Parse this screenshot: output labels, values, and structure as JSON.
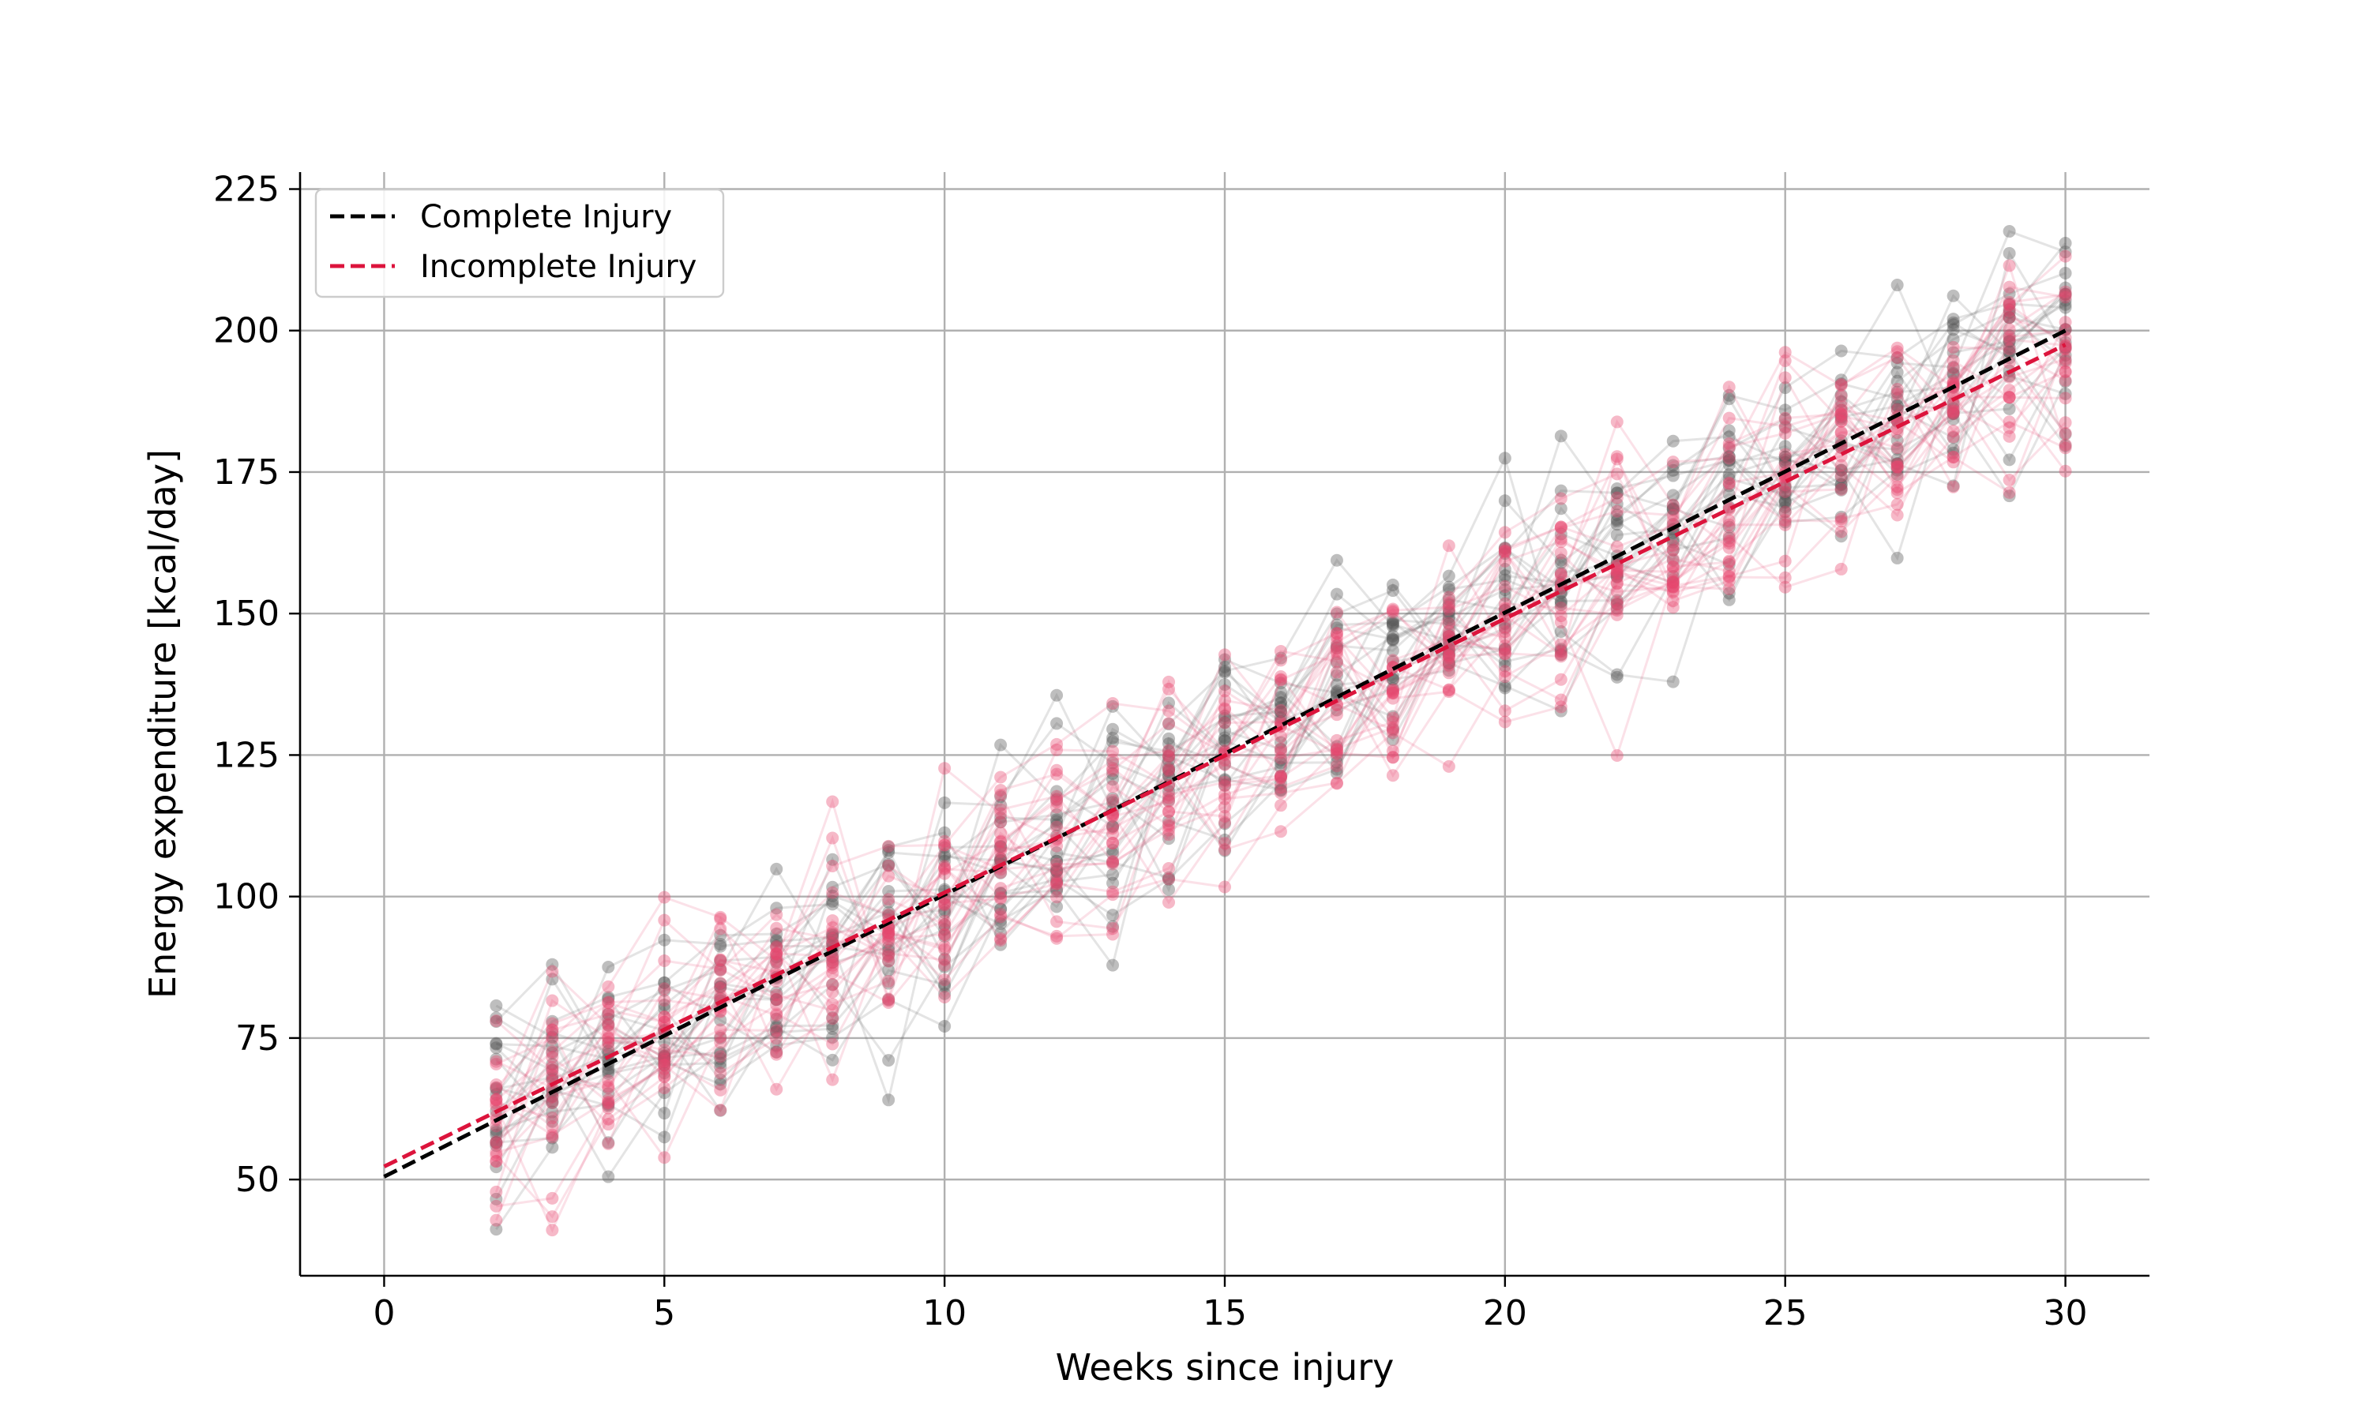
{
  "chart_data": {
    "type": "line",
    "title": "",
    "xlabel": "Weeks since injury",
    "ylabel": "Energy expenditure [kcal/day]",
    "xlim": [
      -1.5,
      31.5
    ],
    "ylim": [
      33,
      228
    ],
    "xticks": [
      0,
      5,
      10,
      15,
      20,
      25,
      30
    ],
    "yticks": [
      50,
      75,
      100,
      125,
      150,
      175,
      200,
      225
    ],
    "grid": true,
    "legend_position": "top-left",
    "legend": [
      {
        "label": "Complete Injury",
        "color": "#000000",
        "style": "dashed"
      },
      {
        "label": "Incomplete Injury",
        "color": "#dc143c",
        "style": "dashed"
      }
    ],
    "series": [
      {
        "name": "Complete Injury",
        "kind": "trend",
        "color": "#000000",
        "x": [
          0,
          30
        ],
        "y": [
          50.5,
          200
        ]
      },
      {
        "name": "Incomplete Injury",
        "kind": "trend",
        "color": "#dc143c",
        "x": [
          0,
          30
        ],
        "y": [
          52.3,
          197.5
        ]
      }
    ],
    "subjects": {
      "weeks_start": 2,
      "weeks_end": 30,
      "groups": [
        {
          "name": "Complete Injury",
          "color": "#555555",
          "count": 20,
          "intercept": 50.5,
          "slope": 4.98,
          "spread": 11
        },
        {
          "name": "Incomplete Injury",
          "color": "#e8466e",
          "count": 22,
          "intercept": 52.3,
          "slope": 4.84,
          "spread": 11
        }
      ]
    }
  }
}
